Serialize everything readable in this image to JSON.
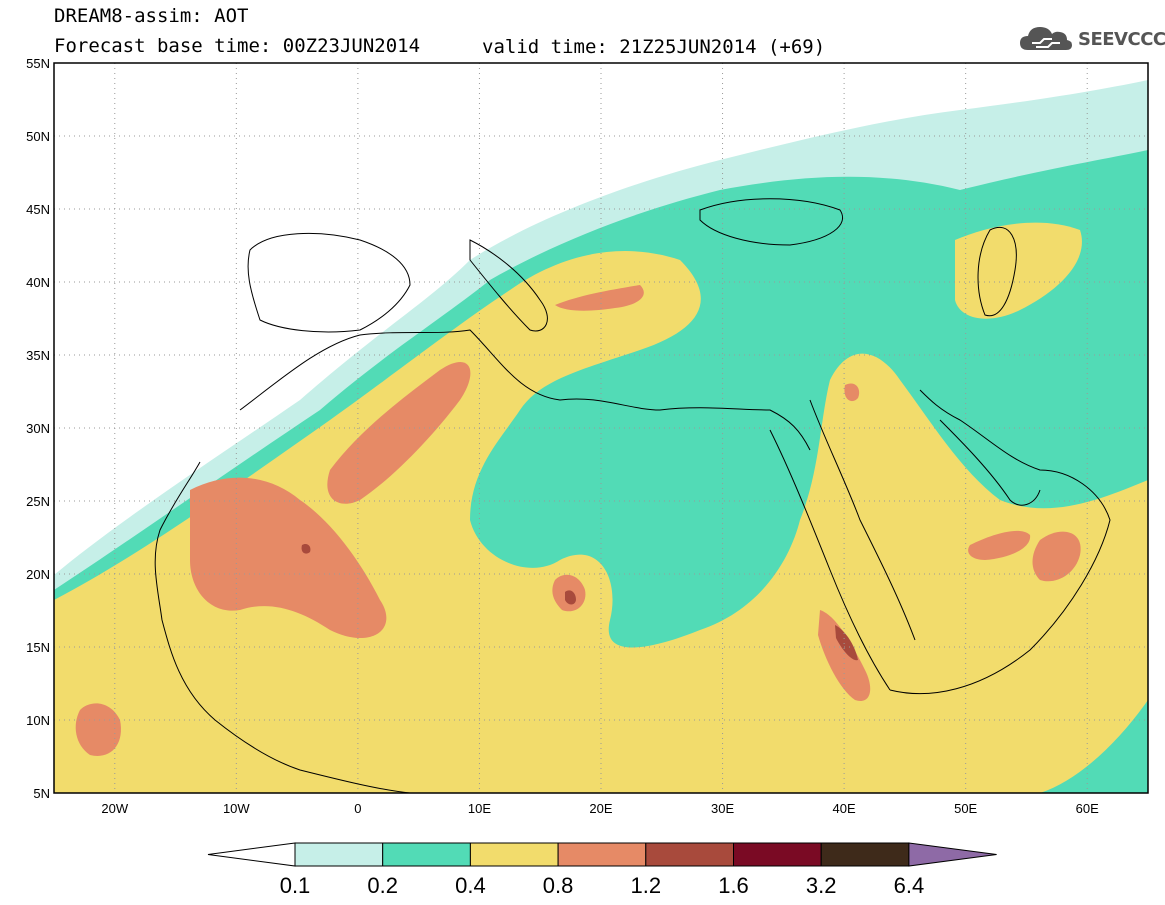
{
  "header": {
    "model_field": "DREAM8-assim: AOT",
    "base_time": "Forecast base time: 00Z23JUN2014",
    "valid_time": "valid time: 21Z25JUN2014 (+69)",
    "logo_text": "SEEVCCC"
  },
  "map": {
    "lat_labels": [
      "55N",
      "50N",
      "45N",
      "40N",
      "35N",
      "30N",
      "25N",
      "20N",
      "15N",
      "10N",
      "5N"
    ],
    "lon_labels": [
      "20W",
      "10W",
      "0",
      "10E",
      "20E",
      "30E",
      "40E",
      "50E",
      "60E"
    ],
    "lon_range": [
      -25,
      65
    ],
    "lat_range": [
      5,
      55
    ],
    "colors": {
      "c01": "#c6efe8",
      "c02": "#52dbb6",
      "c04": "#f2dc6c",
      "c08": "#e68a66",
      "c12": "#a84a3c",
      "c16": "#7a0a24",
      "c32": "#3e2a1a",
      "c64": "#8e6aa6"
    }
  },
  "colorbar": {
    "labels": [
      "0.1",
      "0.2",
      "0.4",
      "0.8",
      "1.2",
      "1.6",
      "3.2",
      "6.4"
    ],
    "colors": [
      "#c6efe8",
      "#52dbb6",
      "#f2dc6c",
      "#e68a66",
      "#a84a3c",
      "#7a0a24",
      "#3e2a1a",
      "#8e6aa6"
    ]
  }
}
